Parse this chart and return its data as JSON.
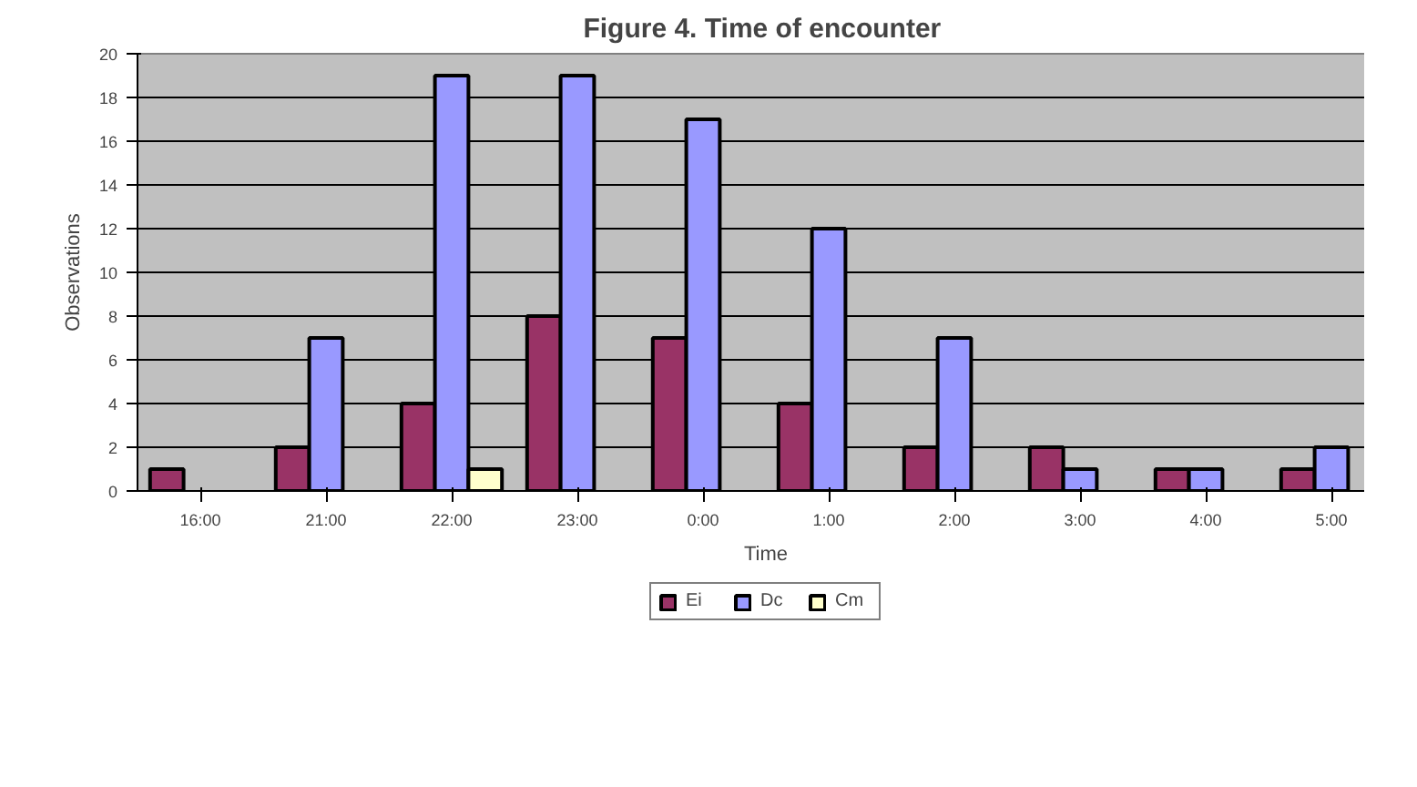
{
  "chart_data": {
    "type": "bar",
    "title": "Figure 4.  Time of encounter",
    "xlabel": "Time",
    "ylabel": "Observations",
    "categories": [
      "16:00",
      "21:00",
      "22:00",
      "23:00",
      "0:00",
      "1:00",
      "2:00",
      "3:00",
      "4:00",
      "5:00"
    ],
    "series": [
      {
        "name": "Ei",
        "color": "#993366",
        "values": [
          1,
          2,
          4,
          8,
          7,
          4,
          2,
          2,
          1,
          1
        ]
      },
      {
        "name": "Dc",
        "color": "#9999ff",
        "values": [
          null,
          7,
          19,
          19,
          17,
          12,
          7,
          1,
          1,
          2
        ]
      },
      {
        "name": "Cm",
        "color": "#ffffcc",
        "values": [
          null,
          null,
          1,
          null,
          null,
          null,
          null,
          null,
          null,
          null
        ]
      }
    ],
    "ylim": [
      0,
      20
    ],
    "yticks": [
      0,
      2,
      4,
      6,
      8,
      10,
      12,
      14,
      16,
      18,
      20
    ],
    "grid": "y",
    "legend": "bottom"
  }
}
